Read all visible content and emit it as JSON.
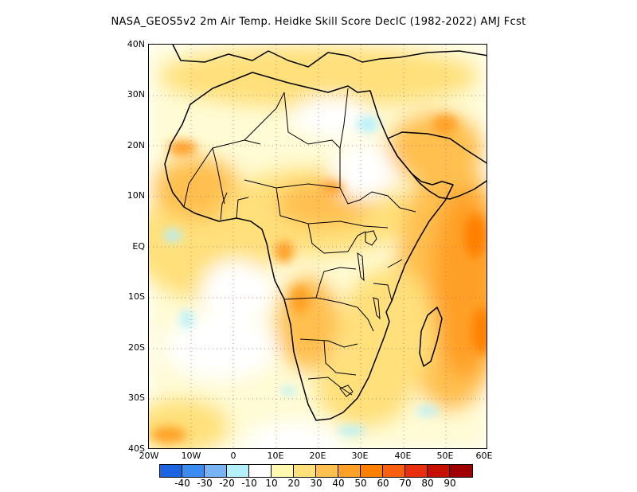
{
  "title": "NASA_GEOS5v2  2m Air Temp. Heidke Skill Score DecIC (1982-2022) AMJ Fcst",
  "map": {
    "region": "Africa",
    "lon_range": [
      -20,
      60
    ],
    "lat_range": [
      -40,
      40
    ],
    "lat_labels": [
      "40N",
      "30N",
      "20N",
      "10N",
      "EQ",
      "10S",
      "20S",
      "30S",
      "40S"
    ],
    "lon_labels": [
      "20W",
      "10W",
      "0",
      "10E",
      "20E",
      "30E",
      "40E",
      "50E",
      "60E"
    ],
    "gridlines": "dotted"
  },
  "colorbar": {
    "colors": [
      "#1c64e0",
      "#3c8cf0",
      "#78b4f4",
      "#b4f0fa",
      "#ffffff",
      "#fff8b0",
      "#ffe07a",
      "#ffc050",
      "#ffa028",
      "#ff8000",
      "#f86010",
      "#e83010",
      "#c81000",
      "#a00000"
    ],
    "labels": [
      "-40",
      "-30",
      "-20",
      "-10",
      "10",
      "20",
      "30",
      "40",
      "50",
      "60",
      "70",
      "80",
      "90"
    ]
  }
}
